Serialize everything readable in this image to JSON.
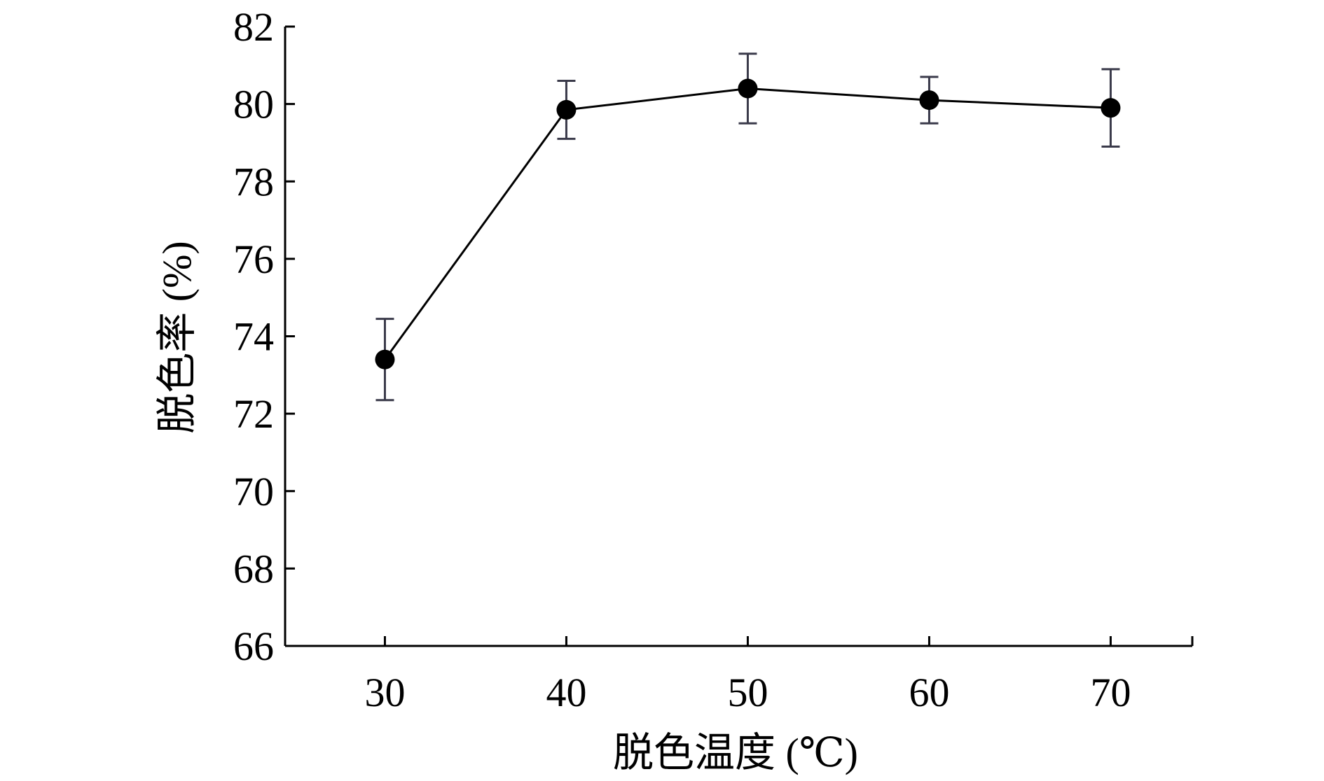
{
  "chart_data": {
    "type": "line",
    "title": "",
    "xlabel": "脱色温度 (℃)",
    "ylabel": "脱色率 (%)",
    "x": [
      30,
      40,
      50,
      60,
      70
    ],
    "x_ticks": [
      "30",
      "40",
      "50",
      "60",
      "70"
    ],
    "xlim": [
      24.5,
      74.5
    ],
    "ylim": [
      66,
      82
    ],
    "y_ticks": [
      "66",
      "68",
      "70",
      "72",
      "74",
      "76",
      "78",
      "80",
      "82"
    ],
    "grid": false,
    "legend": "none",
    "series": [
      {
        "values": [
          73.4,
          79.85,
          80.4,
          80.1,
          79.9
        ],
        "error_upper": [
          74.45,
          80.6,
          81.3,
          80.7,
          80.9
        ],
        "error_lower": [
          72.35,
          79.1,
          79.5,
          79.5,
          78.9
        ],
        "color": "#000000",
        "marker": "filled-circle"
      }
    ],
    "errorbar_color": "#3a3a4a"
  }
}
